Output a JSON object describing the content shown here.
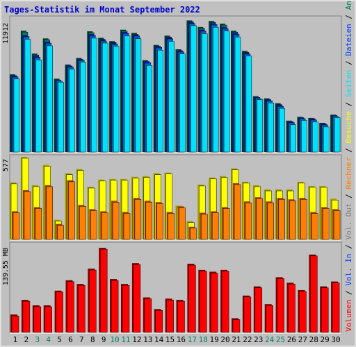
{
  "title": "Tages-Statistik im Monat September 2022",
  "colors": {
    "background": "#c0c0c0",
    "title": "#0000cc",
    "hits_front": "#00805c",
    "hits_side": "#004030",
    "files_front": "#0040ff",
    "files_side": "#002080",
    "pages_front": "#00e0ff",
    "pages_side": "#0070a0",
    "visits_front": "#ffff00",
    "visits_side": "#a0a000",
    "sites_front": "#ff8000",
    "sites_side": "#a04000",
    "kbytes_front": "#ff0000",
    "kbytes_side": "#800000",
    "weekend": "#00805c",
    "weekday": "#000000"
  },
  "chart_data": {
    "type": "bar",
    "categories": [
      "1",
      "2",
      "3",
      "4",
      "5",
      "6",
      "7",
      "8",
      "9",
      "10",
      "11",
      "12",
      "13",
      "14",
      "15",
      "16",
      "17",
      "18",
      "19",
      "20",
      "21",
      "22",
      "23",
      "24",
      "25",
      "26",
      "27",
      "28",
      "29",
      "30"
    ],
    "weekend_days": [
      "3",
      "4",
      "10",
      "11",
      "17",
      "18",
      "24",
      "25"
    ],
    "panels": [
      {
        "key": "hits",
        "ylabel_max": "11912",
        "ymax": 11912,
        "series": [
          {
            "name": "Anfragen",
            "color": "#00805c",
            "values": [
              7000,
              11000,
              8900,
              10300,
              6600,
              7900,
              8500,
              10950,
              10350,
              10050,
              11100,
              10800,
              8300,
              9700,
              10550,
              9300,
              11950,
              11350,
              11900,
              11650,
              11000,
              9150,
              5000,
              4800,
              4350,
              2750,
              3100,
              3000,
              2550,
              3300
            ]
          },
          {
            "name": "Dateien",
            "color": "#0040ff",
            "values": [
              6900,
              10600,
              8700,
              10000,
              6500,
              7800,
              8400,
              10700,
              10200,
              9900,
              10900,
              10650,
              8200,
              9600,
              10400,
              9200,
              11800,
              11100,
              11700,
              11350,
              10800,
              9000,
              4900,
              4700,
              4200,
              2700,
              3050,
              2950,
              2500,
              3250
            ]
          },
          {
            "name": "Seiten",
            "color": "#00e0ff",
            "values": [
              6700,
              10350,
              8450,
              9750,
              6400,
              7600,
              8250,
              10450,
              10000,
              9700,
              10650,
              10400,
              7950,
              9350,
              10150,
              9000,
              11600,
              10850,
              11450,
              11100,
              10550,
              8800,
              4800,
              4500,
              4000,
              2500,
              2900,
              2750,
              2300,
              3150
            ]
          }
        ]
      },
      {
        "key": "visits",
        "ylabel_max": "577",
        "ymax": 577,
        "series": [
          {
            "name": "Besuche",
            "color": "#ffff00",
            "values": [
              395,
              577,
              375,
              520,
              130,
              460,
              490,
              365,
              415,
              420,
              420,
              435,
              440,
              460,
              465,
              230,
              120,
              380,
              430,
              440,
              495,
              400,
              375,
              345,
              345,
              345,
              400,
              370,
              370,
              280
            ]
          },
          {
            "name": "Rechner",
            "color": "#ff8000",
            "values": [
              190,
              340,
              220,
              375,
              100,
              410,
              235,
              205,
              190,
              265,
              185,
              285,
              265,
              255,
              185,
              225,
              80,
              180,
              190,
              220,
              390,
              260,
              290,
              260,
              285,
              275,
              285,
              185,
              220,
              205
            ]
          }
        ]
      },
      {
        "key": "kbytes",
        "ylabel_max": "139.55 MB",
        "ymax": 139.55,
        "series": [
          {
            "name": "Volumen",
            "color": "#ff0000",
            "values": [
              27,
              51,
              42,
              42,
              66,
              83,
              77,
              102,
              136,
              85,
              77,
              111,
              55,
              36,
              53,
              51,
              110,
              100,
              97,
              100,
              21,
              58,
              73,
              44,
              88,
              79,
              67,
              125,
              73,
              81
            ]
          }
        ]
      }
    ],
    "legend": [
      {
        "label": "Anfragen",
        "color": "#00805c"
      },
      {
        "label": "Dateien",
        "color": "#0040ff"
      },
      {
        "label": "Seiten",
        "color": "#00e0ff"
      },
      {
        "label": "Besuche",
        "color": "#ffff00"
      },
      {
        "label": "Rechner",
        "color": "#ff8000"
      },
      {
        "label": "Vol. Out",
        "color": "#808080"
      },
      {
        "label": "Vol. In",
        "color": "#0040ff"
      },
      {
        "label": "Volumen",
        "color": "#ff0000"
      }
    ],
    "legend_separator": " / ",
    "legend_placement": "right, vertical"
  }
}
